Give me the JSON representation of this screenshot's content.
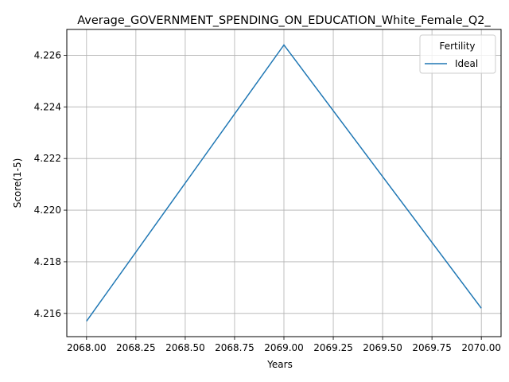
{
  "chart_data": {
    "type": "line",
    "title": "Average_GOVERNMENT_SPENDING_ON_EDUCATION_White_Female_Q2_",
    "xlabel": "Years",
    "ylabel": "Score(1-5)",
    "xlim": [
      2067.9,
      2070.1
    ],
    "ylim": [
      4.2151,
      4.227
    ],
    "x_ticks": [
      2068.0,
      2068.25,
      2068.5,
      2068.75,
      2069.0,
      2069.25,
      2069.5,
      2069.75,
      2070.0
    ],
    "x_tick_labels": [
      "2068.00",
      "2068.25",
      "2068.50",
      "2068.75",
      "2069.00",
      "2069.25",
      "2069.50",
      "2069.75",
      "2070.00"
    ],
    "y_ticks": [
      4.216,
      4.218,
      4.22,
      4.222,
      4.224,
      4.226
    ],
    "y_tick_labels": [
      "4.216",
      "4.218",
      "4.220",
      "4.222",
      "4.224",
      "4.226"
    ],
    "grid": true,
    "legend": {
      "title": "Fertility",
      "placement": "top-right"
    },
    "series": [
      {
        "name": "Ideal",
        "color": "#1f77b4",
        "x": [
          2068,
          2069,
          2070
        ],
        "values": [
          4.2157,
          4.2264,
          4.2162
        ]
      }
    ]
  }
}
